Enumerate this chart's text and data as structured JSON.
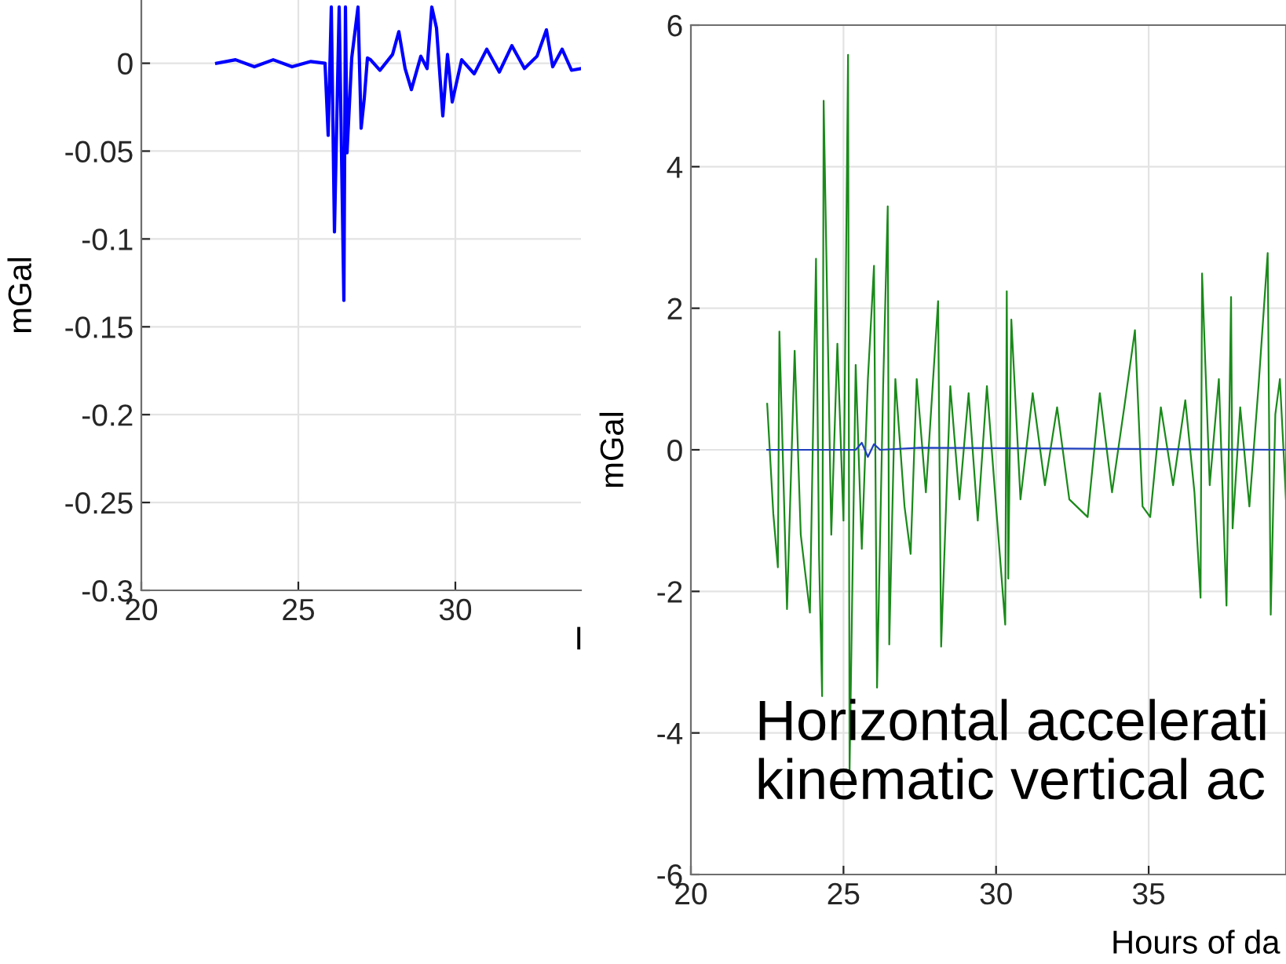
{
  "chart_data": [
    {
      "type": "line",
      "xlabel": "I",
      "ylabel": "mGal",
      "xlim": [
        20,
        34
      ],
      "ylim": [
        -0.3,
        0.036
      ],
      "xticks": [
        20,
        25,
        30
      ],
      "yticks": [
        -0.3,
        -0.25,
        -0.2,
        -0.15,
        -0.1,
        -0.05,
        0
      ],
      "grid": true,
      "legend": false,
      "series": [
        {
          "color": "#0000ff",
          "x": [
            22.4,
            23.0,
            23.6,
            24.2,
            24.8,
            25.4,
            25.85,
            25.95,
            26.05,
            26.15,
            26.3,
            26.45,
            26.5,
            26.55,
            26.7,
            26.9,
            27.0,
            27.1,
            27.2,
            27.3,
            27.6,
            28.0,
            28.2,
            28.4,
            28.6,
            28.9,
            29.1,
            29.25,
            29.4,
            29.6,
            29.75,
            29.9,
            30.2,
            30.6,
            31.0,
            31.4,
            31.8,
            32.2,
            32.6,
            32.9,
            33.1,
            33.4,
            33.7,
            34.0
          ],
          "values": [
            0,
            0.002,
            -0.002,
            0.002,
            -0.002,
            0.001,
            0,
            -0.041,
            0.032,
            -0.096,
            0.032,
            -0.135,
            0.032,
            -0.051,
            0.003,
            0.032,
            -0.037,
            -0.02,
            0.003,
            0.002,
            -0.004,
            0.005,
            0.018,
            -0.003,
            -0.015,
            0.004,
            -0.003,
            0.032,
            0.02,
            -0.03,
            0.005,
            -0.022,
            0.002,
            -0.006,
            0.008,
            -0.005,
            0.01,
            -0.003,
            0.004,
            0.019,
            -0.002,
            0.008,
            -0.004,
            -0.003
          ]
        }
      ]
    },
    {
      "type": "line",
      "xlabel": "Hours of da",
      "ylabel": "mGal",
      "xlim": [
        20,
        39.5
      ],
      "ylim": [
        -6,
        6
      ],
      "xticks": [
        20,
        25,
        30,
        35
      ],
      "yticks": [
        -6,
        -4,
        -2,
        0,
        2,
        4,
        6
      ],
      "grid": true,
      "legend": false,
      "annotations": [
        "Horizontal accelerati\nkinematic vertical ac"
      ],
      "series": [
        {
          "color": "#1a8a1a",
          "x": [
            22.5,
            22.7,
            22.85,
            22.9,
            23.15,
            23.4,
            23.6,
            23.9,
            24.1,
            24.2,
            24.3,
            24.35,
            24.6,
            24.8,
            25.0,
            25.15,
            25.2,
            25.4,
            25.6,
            25.8,
            26.0,
            26.1,
            26.3,
            26.45,
            26.5,
            26.7,
            27.0,
            27.2,
            27.4,
            27.7,
            28.1,
            28.2,
            28.5,
            28.8,
            29.1,
            29.4,
            29.7,
            30.0,
            30.3,
            30.35,
            30.4,
            30.5,
            30.8,
            31.2,
            31.6,
            32.0,
            32.4,
            33.0,
            33.4,
            33.8,
            34.2,
            34.55,
            34.8,
            35.05,
            35.4,
            35.8,
            36.2,
            36.5,
            36.7,
            36.75,
            37.0,
            37.3,
            37.55,
            37.7,
            37.75,
            38.0,
            38.3,
            38.6,
            38.9,
            39.0,
            39.15,
            39.3,
            39.5
          ],
          "values": [
            0.65,
            -0.9,
            -1.66,
            1.67,
            -2.25,
            1.4,
            -1.2,
            -2.3,
            2.7,
            -1.5,
            -3.48,
            4.93,
            -1.2,
            1.5,
            -1.0,
            5.58,
            -4.52,
            1.2,
            -1.4,
            1.0,
            2.6,
            -3.36,
            0.9,
            3.44,
            -2.75,
            1.0,
            -0.8,
            -1.47,
            1.0,
            -0.6,
            2.1,
            -2.78,
            0.9,
            -0.7,
            0.8,
            -1.0,
            0.9,
            -0.8,
            -2.47,
            2.24,
            -1.82,
            1.84,
            -0.7,
            0.8,
            -0.5,
            0.6,
            -0.7,
            -0.95,
            0.8,
            -0.6,
            0.6,
            1.69,
            -0.8,
            -0.95,
            0.6,
            -0.5,
            0.7,
            -0.6,
            -2.09,
            2.49,
            -0.5,
            1.0,
            -2.2,
            2.16,
            -1.11,
            0.6,
            -0.8,
            0.9,
            2.78,
            -2.33,
            0.5,
            1.0,
            -0.7
          ]
        },
        {
          "color": "#1f3fbf",
          "x": [
            22.5,
            25.4,
            25.6,
            25.8,
            26.0,
            26.2,
            27.5,
            39.5
          ],
          "values": [
            0,
            0,
            0.1,
            -0.1,
            0.08,
            0,
            0.03,
            0
          ]
        }
      ]
    }
  ]
}
